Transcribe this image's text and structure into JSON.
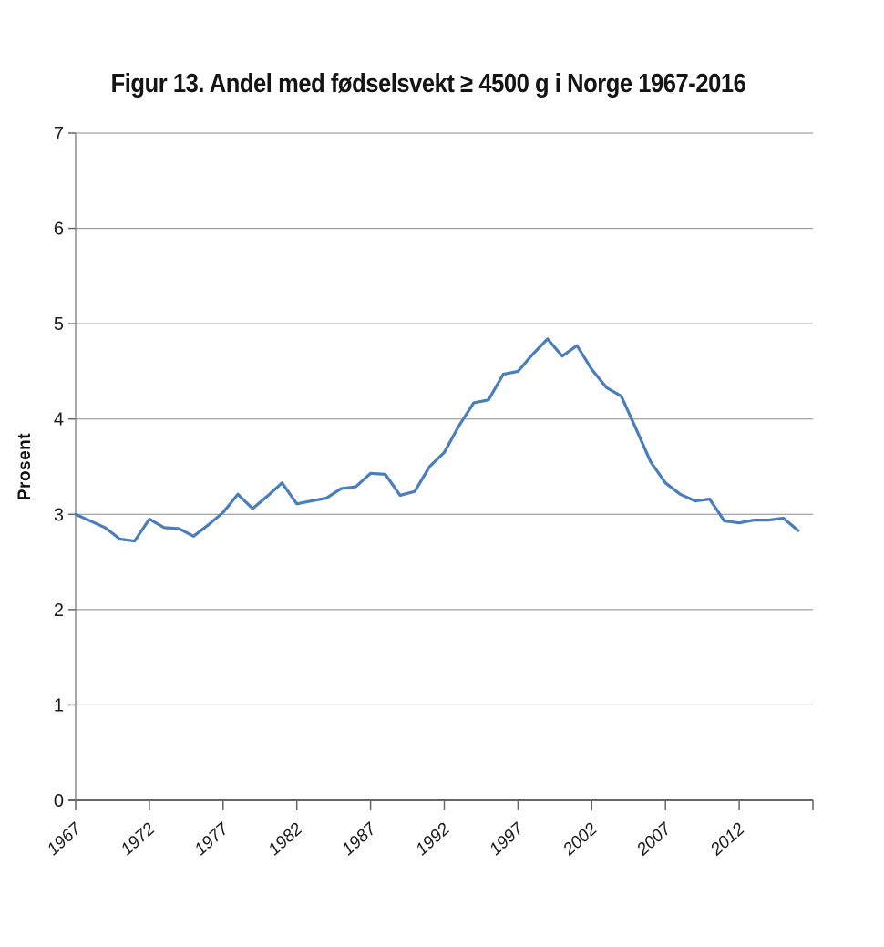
{
  "chart_data": {
    "type": "line",
    "title": "Figur 13. Andel med fødselsvekt ≥ 4500 g i Norge 1967-2016",
    "ylabel": "Prosent",
    "xlabel": "",
    "ylim": [
      0,
      7
    ],
    "yticks": [
      0,
      1,
      2,
      3,
      4,
      5,
      6,
      7
    ],
    "xticks": [
      1967,
      1972,
      1977,
      1982,
      1987,
      1992,
      1997,
      2002,
      2007,
      2012
    ],
    "x_range": [
      1967,
      2016
    ],
    "grid": true,
    "legend": false,
    "line_color": "#4a7ebb",
    "gridline_color": "#8c8c8c",
    "axis_color": "#666666",
    "x": [
      1967,
      1968,
      1969,
      1970,
      1971,
      1972,
      1973,
      1974,
      1975,
      1976,
      1977,
      1978,
      1979,
      1980,
      1981,
      1982,
      1983,
      1984,
      1985,
      1986,
      1987,
      1988,
      1989,
      1990,
      1991,
      1992,
      1993,
      1994,
      1995,
      1996,
      1997,
      1998,
      1999,
      2000,
      2001,
      2002,
      2003,
      2004,
      2005,
      2006,
      2007,
      2008,
      2009,
      2010,
      2011,
      2012,
      2013,
      2014,
      2015,
      2016
    ],
    "values": [
      3.0,
      2.93,
      2.86,
      2.74,
      2.72,
      2.95,
      2.86,
      2.85,
      2.77,
      2.89,
      3.02,
      3.21,
      3.06,
      3.19,
      3.33,
      3.11,
      3.14,
      3.17,
      3.27,
      3.29,
      3.43,
      3.42,
      3.2,
      3.24,
      3.5,
      3.65,
      3.93,
      4.17,
      4.2,
      4.47,
      4.5,
      4.68,
      4.84,
      4.66,
      4.77,
      4.52,
      4.33,
      4.24,
      3.9,
      3.55,
      3.33,
      3.21,
      3.14,
      3.16,
      2.93,
      2.91,
      2.94,
      2.94,
      2.96,
      2.83
    ]
  }
}
